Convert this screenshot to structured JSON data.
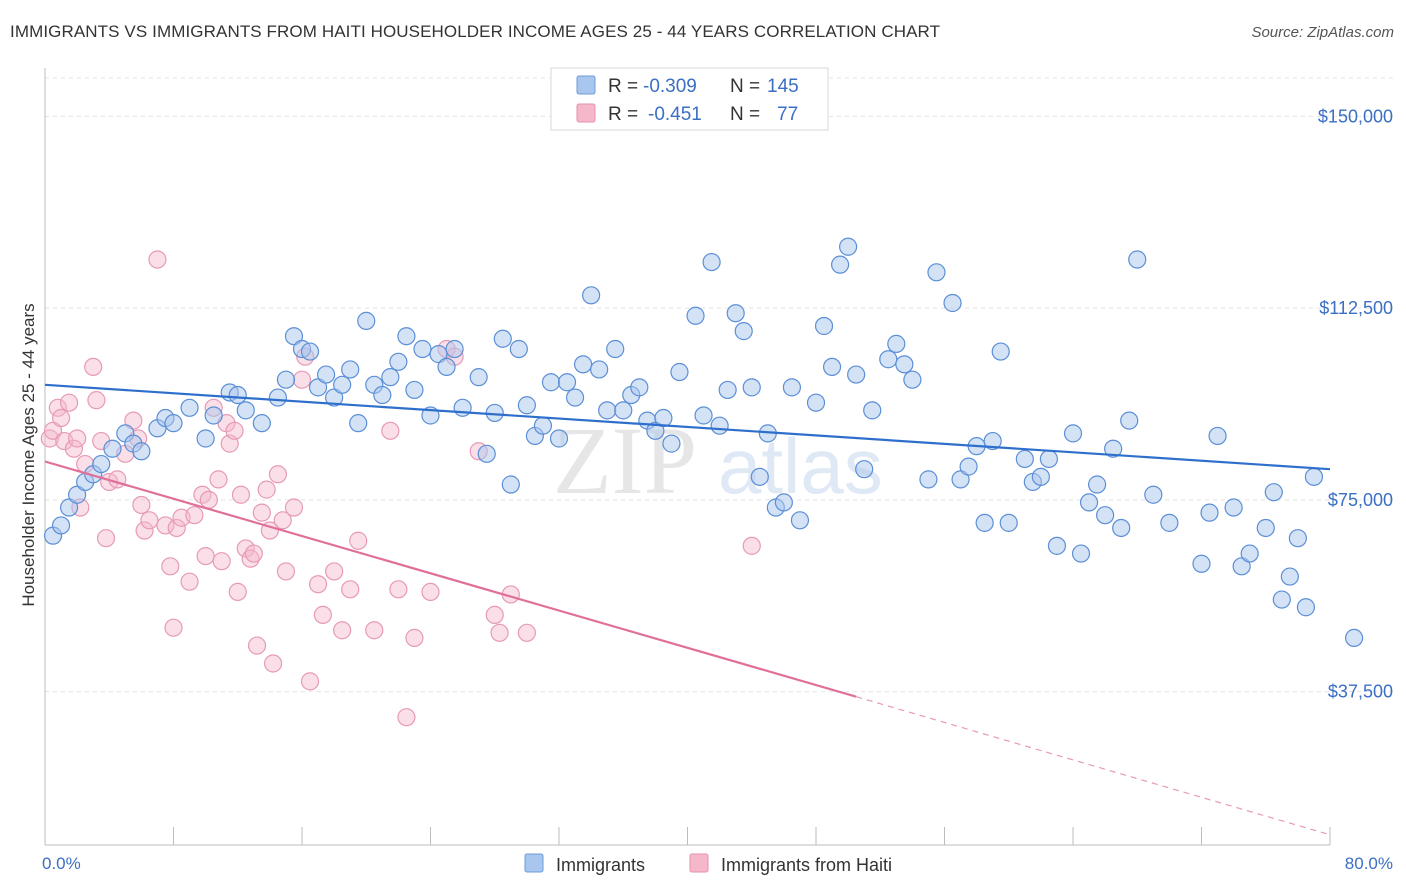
{
  "header": {
    "title": "IMMIGRANTS VS IMMIGRANTS FROM HAITI HOUSEHOLDER INCOME AGES 25 - 44 YEARS CORRELATION CHART",
    "source": "Source: ZipAtlas.com"
  },
  "legend_top": {
    "rows": [
      {
        "r_label": "R =",
        "r_value": "-0.309",
        "n_label": "N =",
        "n_value": "145"
      },
      {
        "r_label": "R =",
        "r_value": "-0.451",
        "n_label": "N =",
        "n_value": "77"
      }
    ]
  },
  "legend_bottom": {
    "items": [
      "Immigrants",
      "Immigrants from Haiti"
    ]
  },
  "watermark": {
    "zip": "ZIP",
    "atlas": "atlas"
  },
  "colors": {
    "blue": "#3b78d1",
    "blue_fill": "#a9c6ee",
    "pink": "#e0709a",
    "pink_fill": "#f5b8cb",
    "tick_text": "#3b6fc4"
  },
  "chart_data": {
    "type": "scatter",
    "title": "IMMIGRANTS VS IMMIGRANTS FROM HAITI HOUSEHOLDER INCOME AGES 25 - 44 YEARS CORRELATION CHART",
    "xlabel": "",
    "ylabel": "Householder Income Ages 25 - 44 years",
    "xlim": [
      0,
      80
    ],
    "ylim": [
      7500,
      157500
    ],
    "x_tick_labels": [
      "0.0%",
      "80.0%"
    ],
    "y_ticks": [
      37500,
      75000,
      112500,
      150000
    ],
    "y_tick_labels": [
      "$37,500",
      "$75,000",
      "$112,500",
      "$150,000"
    ],
    "grid": true,
    "legend": "top-center",
    "series": [
      {
        "name": "Immigrants",
        "color": "#3b78d1",
        "R": -0.309,
        "N": 145,
        "trend": {
          "x": [
            0,
            80
          ],
          "y": [
            97500,
            81000
          ]
        },
        "points": [
          [
            0.5,
            68000
          ],
          [
            1,
            70000
          ],
          [
            1.5,
            73500
          ],
          [
            2,
            76000
          ],
          [
            2.5,
            78500
          ],
          [
            3,
            80000
          ],
          [
            3.5,
            82000
          ],
          [
            4.2,
            85000
          ],
          [
            5,
            88000
          ],
          [
            5.5,
            86000
          ],
          [
            6,
            84500
          ],
          [
            7,
            89000
          ],
          [
            7.5,
            91000
          ],
          [
            8,
            90000
          ],
          [
            9,
            93000
          ],
          [
            10,
            87000
          ],
          [
            10.5,
            91500
          ],
          [
            11.5,
            96000
          ],
          [
            12,
            95500
          ],
          [
            12.5,
            92500
          ],
          [
            13.5,
            90000
          ],
          [
            14.5,
            95000
          ],
          [
            15,
            98500
          ],
          [
            15.5,
            107000
          ],
          [
            16,
            104500
          ],
          [
            16.5,
            104000
          ],
          [
            17,
            97000
          ],
          [
            17.5,
            99500
          ],
          [
            18,
            95000
          ],
          [
            18.5,
            97500
          ],
          [
            19,
            100500
          ],
          [
            19.5,
            90000
          ],
          [
            20,
            110000
          ],
          [
            20.5,
            97500
          ],
          [
            21,
            95500
          ],
          [
            21.5,
            99000
          ],
          [
            22,
            102000
          ],
          [
            22.5,
            107000
          ],
          [
            23,
            96500
          ],
          [
            23.5,
            104500
          ],
          [
            24,
            91500
          ],
          [
            24.5,
            103500
          ],
          [
            25,
            101000
          ],
          [
            25.5,
            104500
          ],
          [
            26,
            93000
          ],
          [
            27,
            99000
          ],
          [
            27.5,
            84000
          ],
          [
            28,
            92000
          ],
          [
            28.5,
            106500
          ],
          [
            29,
            78000
          ],
          [
            29.5,
            104500
          ],
          [
            30,
            93500
          ],
          [
            30.5,
            87500
          ],
          [
            31,
            89500
          ],
          [
            31.5,
            98000
          ],
          [
            32,
            87000
          ],
          [
            32.5,
            98000
          ],
          [
            33,
            95000
          ],
          [
            33.5,
            101500
          ],
          [
            34,
            115000
          ],
          [
            34.5,
            100500
          ],
          [
            35,
            92500
          ],
          [
            35.5,
            104500
          ],
          [
            36,
            92500
          ],
          [
            36.5,
            95500
          ],
          [
            37,
            97000
          ],
          [
            37.5,
            90500
          ],
          [
            38,
            88500
          ],
          [
            38.5,
            91000
          ],
          [
            39,
            86000
          ],
          [
            39.5,
            100000
          ],
          [
            40.5,
            111000
          ],
          [
            41,
            91500
          ],
          [
            41.5,
            121500
          ],
          [
            42,
            89500
          ],
          [
            42.5,
            96500
          ],
          [
            43,
            111500
          ],
          [
            43.5,
            108000
          ],
          [
            44,
            97000
          ],
          [
            44.5,
            79500
          ],
          [
            45,
            88000
          ],
          [
            45.5,
            73500
          ],
          [
            46,
            74500
          ],
          [
            46.5,
            97000
          ],
          [
            47,
            71000
          ],
          [
            48,
            94000
          ],
          [
            48.5,
            109000
          ],
          [
            49,
            101000
          ],
          [
            49.5,
            121000
          ],
          [
            50,
            124500
          ],
          [
            50.5,
            99500
          ],
          [
            51,
            81000
          ],
          [
            51.5,
            92500
          ],
          [
            52.5,
            102500
          ],
          [
            53,
            105500
          ],
          [
            53.5,
            101500
          ],
          [
            54,
            98500
          ],
          [
            55,
            79000
          ],
          [
            55.5,
            119500
          ],
          [
            56.5,
            113500
          ],
          [
            57,
            79000
          ],
          [
            57.5,
            81500
          ],
          [
            58,
            85500
          ],
          [
            58.5,
            70500
          ],
          [
            59,
            86500
          ],
          [
            59.5,
            104000
          ],
          [
            60,
            70500
          ],
          [
            61,
            83000
          ],
          [
            61.5,
            78500
          ],
          [
            62,
            79500
          ],
          [
            62.5,
            83000
          ],
          [
            63,
            66000
          ],
          [
            64,
            88000
          ],
          [
            64.5,
            64500
          ],
          [
            65,
            74500
          ],
          [
            65.5,
            78000
          ],
          [
            66,
            72000
          ],
          [
            66.5,
            85000
          ],
          [
            67,
            69500
          ],
          [
            67.5,
            90500
          ],
          [
            68,
            122000
          ],
          [
            69,
            76000
          ],
          [
            70,
            70500
          ],
          [
            72,
            62500
          ],
          [
            72.5,
            72500
          ],
          [
            73,
            87500
          ],
          [
            74,
            73500
          ],
          [
            74.5,
            62000
          ],
          [
            75,
            64500
          ],
          [
            76,
            69500
          ],
          [
            76.5,
            76500
          ],
          [
            77,
            55500
          ],
          [
            77.5,
            60000
          ],
          [
            78,
            67500
          ],
          [
            78.5,
            54000
          ],
          [
            79,
            79500
          ],
          [
            81.5,
            48000
          ]
        ]
      },
      {
        "name": "Immigrants from Haiti",
        "color": "#e0709a",
        "R": -0.451,
        "N": 77,
        "trend": {
          "x": [
            0,
            50.5
          ],
          "y": [
            82500,
            36500
          ]
        },
        "trend_dashed": {
          "x": [
            50.5,
            80
          ],
          "y": [
            36500,
            9500
          ]
        },
        "points": [
          [
            0.3,
            87000
          ],
          [
            0.5,
            88500
          ],
          [
            0.8,
            93000
          ],
          [
            1,
            91000
          ],
          [
            1.2,
            86500
          ],
          [
            1.5,
            94000
          ],
          [
            1.8,
            85000
          ],
          [
            2,
            87000
          ],
          [
            2.2,
            73500
          ],
          [
            2.5,
            82000
          ],
          [
            3,
            101000
          ],
          [
            3.2,
            94500
          ],
          [
            3.5,
            86500
          ],
          [
            3.8,
            67500
          ],
          [
            4,
            78500
          ],
          [
            4.5,
            79000
          ],
          [
            5,
            84000
          ],
          [
            5.5,
            90500
          ],
          [
            5.8,
            87000
          ],
          [
            6,
            74000
          ],
          [
            6.2,
            69000
          ],
          [
            6.5,
            71000
          ],
          [
            7,
            122000
          ],
          [
            7.5,
            70000
          ],
          [
            7.8,
            62000
          ],
          [
            8,
            50000
          ],
          [
            8.2,
            69500
          ],
          [
            8.5,
            71500
          ],
          [
            9,
            59000
          ],
          [
            9.3,
            72000
          ],
          [
            9.8,
            76000
          ],
          [
            10,
            64000
          ],
          [
            10.2,
            75000
          ],
          [
            10.5,
            93000
          ],
          [
            10.8,
            79000
          ],
          [
            11,
            63000
          ],
          [
            11.3,
            90000
          ],
          [
            11.5,
            86000
          ],
          [
            11.8,
            88500
          ],
          [
            12,
            57000
          ],
          [
            12.2,
            76000
          ],
          [
            12.5,
            65500
          ],
          [
            12.8,
            63500
          ],
          [
            13,
            64500
          ],
          [
            13.2,
            46500
          ],
          [
            13.5,
            72500
          ],
          [
            13.8,
            77000
          ],
          [
            14,
            69000
          ],
          [
            14.2,
            43000
          ],
          [
            14.5,
            80000
          ],
          [
            14.8,
            71000
          ],
          [
            15,
            61000
          ],
          [
            15.5,
            73500
          ],
          [
            16,
            98500
          ],
          [
            16.2,
            103000
          ],
          [
            16.5,
            39500
          ],
          [
            17,
            58500
          ],
          [
            17.3,
            52500
          ],
          [
            18,
            61000
          ],
          [
            18.5,
            49500
          ],
          [
            19,
            57500
          ],
          [
            19.5,
            67000
          ],
          [
            20.5,
            49500
          ],
          [
            21.5,
            88500
          ],
          [
            22,
            57500
          ],
          [
            22.5,
            32500
          ],
          [
            23,
            48000
          ],
          [
            24,
            57000
          ],
          [
            25,
            104500
          ],
          [
            25.5,
            103000
          ],
          [
            27,
            84500
          ],
          [
            28,
            52500
          ],
          [
            28.3,
            49000
          ],
          [
            29,
            56500
          ],
          [
            30,
            49000
          ],
          [
            44,
            66000
          ]
        ]
      }
    ]
  }
}
